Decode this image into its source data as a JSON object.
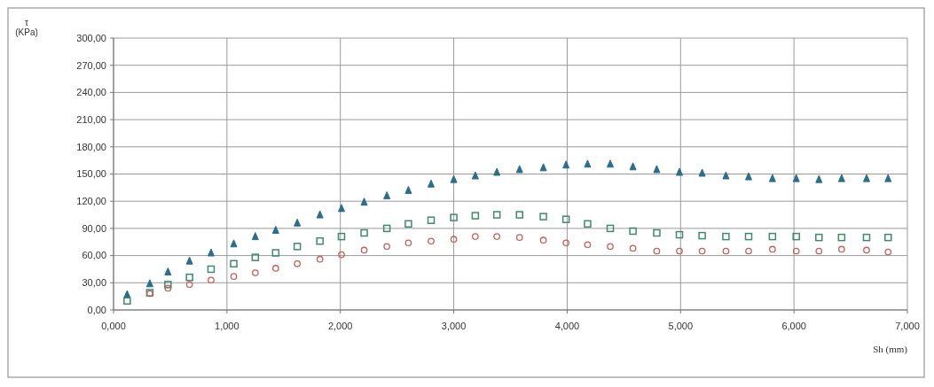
{
  "chart_data": {
    "type": "scatter",
    "ylabel": "τ (KPa)",
    "xlabel": "Sh (mm)",
    "x": [
      0.12,
      0.32,
      0.48,
      0.67,
      0.86,
      1.06,
      1.25,
      1.43,
      1.62,
      1.82,
      2.01,
      2.21,
      2.41,
      2.6,
      2.8,
      3.0,
      3.19,
      3.38,
      3.58,
      3.79,
      3.99,
      4.18,
      4.38,
      4.58,
      4.79,
      4.99,
      5.19,
      5.4,
      5.6,
      5.81,
      6.02,
      6.22,
      6.42,
      6.64,
      6.83
    ],
    "series": [
      {
        "color": "#2b6e8c",
        "marker": "triangle",
        "values": [
          17,
          29,
          42,
          54,
          63,
          73,
          81,
          88,
          96,
          105,
          112,
          119,
          126,
          132,
          139,
          144,
          148,
          152,
          155,
          157,
          160,
          161,
          161,
          158,
          155,
          152,
          151,
          148,
          147,
          145,
          145,
          144,
          145,
          145,
          145
        ]
      },
      {
        "color": "#3f8a6c",
        "marker": "square",
        "values": [
          10,
          19,
          28,
          36,
          45,
          51,
          58,
          63,
          70,
          76,
          81,
          85,
          90,
          95,
          99,
          102,
          104,
          105,
          105,
          103,
          100,
          95,
          90,
          87,
          85,
          83,
          82,
          81,
          81,
          81,
          81,
          80,
          80,
          80,
          80
        ]
      },
      {
        "color": "#c4605a",
        "marker": "circle",
        "values": [
          null,
          18,
          24,
          28,
          33,
          37,
          41,
          46,
          51,
          56,
          61,
          66,
          70,
          74,
          76,
          78,
          81,
          81,
          80,
          77,
          74,
          72,
          70,
          68,
          65,
          65,
          65,
          65,
          65,
          67,
          65,
          65,
          67,
          66,
          64
        ]
      }
    ],
    "xlim": [
      0,
      7
    ],
    "xticks": [
      {
        "value": 0,
        "label": "0,000"
      },
      {
        "value": 1,
        "label": "1,000"
      },
      {
        "value": 2,
        "label": "2,000"
      },
      {
        "value": 3,
        "label": "3,000"
      },
      {
        "value": 4,
        "label": "4,000"
      },
      {
        "value": 5,
        "label": "5,000"
      },
      {
        "value": 6,
        "label": "6,000"
      },
      {
        "value": 7,
        "label": "7,000"
      }
    ],
    "ylim": [
      0,
      300
    ],
    "yticks": [
      {
        "value": 0,
        "label": "0,00"
      },
      {
        "value": 30,
        "label": "30,00"
      },
      {
        "value": 60,
        "label": "60,00"
      },
      {
        "value": 90,
        "label": "90,00"
      },
      {
        "value": 120,
        "label": "120,00"
      },
      {
        "value": 150,
        "label": "150,00"
      },
      {
        "value": 180,
        "label": "180,00"
      },
      {
        "value": 210,
        "label": "210,00"
      },
      {
        "value": 240,
        "label": "240,00"
      },
      {
        "value": 270,
        "label": "270,00"
      },
      {
        "value": 300,
        "label": "300,00"
      }
    ],
    "grid": true
  }
}
